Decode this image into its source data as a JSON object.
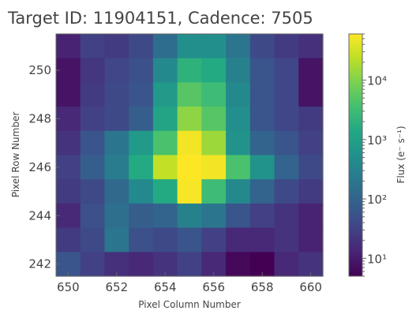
{
  "chart_data": {
    "type": "heatmap",
    "title": "Target ID: 11904151, Cadence: 7505",
    "xlabel": "Pixel Column Number",
    "ylabel": "Pixel Row Number",
    "x_columns": [
      650,
      651,
      652,
      653,
      654,
      655,
      656,
      657,
      658,
      659,
      660
    ],
    "y_rows": [
      251,
      250,
      249,
      248,
      247,
      246,
      245,
      244,
      243,
      242
    ],
    "x_ticks": [
      650,
      652,
      654,
      656,
      658,
      660
    ],
    "y_ticks": [
      242,
      244,
      246,
      248,
      250
    ],
    "flux_matrix": [
      [
        12,
        30,
        25,
        40,
        140,
        500,
        500,
        200,
        40,
        25,
        18
      ],
      [
        8,
        22,
        35,
        50,
        400,
        2000,
        1500,
        300,
        60,
        35,
        8
      ],
      [
        8,
        25,
        40,
        60,
        800,
        5000,
        3000,
        400,
        60,
        35,
        8
      ],
      [
        15,
        30,
        40,
        80,
        1200,
        12000,
        5000,
        500,
        60,
        35,
        25
      ],
      [
        20,
        60,
        200,
        800,
        4000,
        50000,
        15000,
        600,
        100,
        60,
        30
      ],
      [
        30,
        80,
        250,
        1500,
        25000,
        60000,
        50000,
        4000,
        600,
        100,
        40
      ],
      [
        25,
        40,
        120,
        400,
        1500,
        55000,
        3000,
        400,
        100,
        40,
        25
      ],
      [
        15,
        50,
        150,
        80,
        100,
        300,
        200,
        60,
        30,
        20,
        12
      ],
      [
        25,
        40,
        200,
        50,
        40,
        60,
        30,
        15,
        15,
        20,
        12
      ],
      [
        60,
        30,
        18,
        15,
        20,
        30,
        15,
        6,
        5,
        15,
        20
      ]
    ],
    "colorbar": {
      "label": "Flux (e⁻ s⁻¹)",
      "scale": "log",
      "range": [
        5,
        60000
      ],
      "ticks": [
        {
          "value": 10,
          "label": "10¹"
        },
        {
          "value": 100,
          "label": "10²"
        },
        {
          "value": 1000,
          "label": "10³"
        },
        {
          "value": 10000,
          "label": "10⁴"
        }
      ],
      "colormap": "viridis"
    }
  }
}
